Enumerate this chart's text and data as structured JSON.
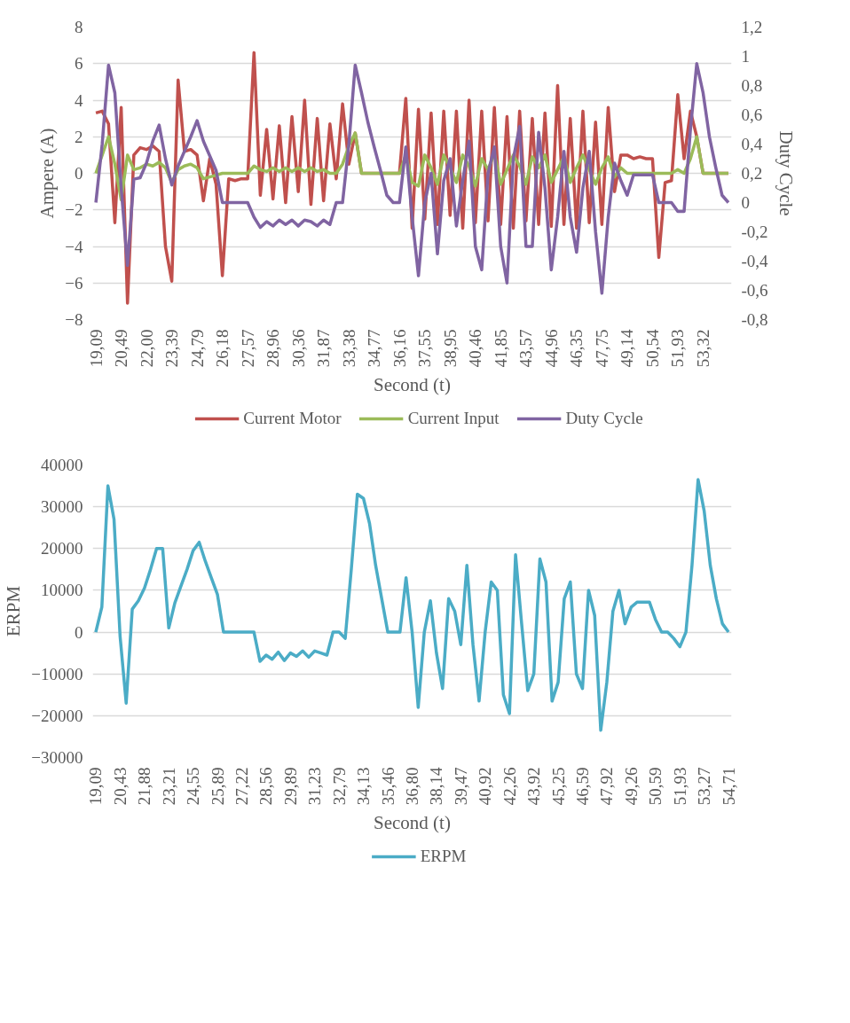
{
  "chart_data": [
    {
      "type": "line",
      "xlabel": "Second (t)",
      "ylabel": "Ampere (A)",
      "y2label": "Duty Cycle",
      "grid": "y",
      "legend": "bottom",
      "categories": [
        "19,09",
        null,
        null,
        null,
        "20,49",
        null,
        null,
        null,
        "22,00",
        null,
        null,
        null,
        "23,39",
        null,
        null,
        null,
        "24,79",
        null,
        null,
        null,
        "26,18",
        null,
        null,
        null,
        "27,57",
        null,
        null,
        null,
        "28,96",
        null,
        null,
        null,
        "30,36",
        null,
        null,
        null,
        "31,87",
        null,
        null,
        null,
        "33,38",
        null,
        null,
        null,
        "34,77",
        null,
        null,
        null,
        "36,16",
        null,
        null,
        null,
        "37,55",
        null,
        null,
        null,
        "38,95",
        null,
        null,
        null,
        "40,46",
        null,
        null,
        null,
        "41,85",
        null,
        null,
        null,
        "43,57",
        null,
        null,
        null,
        "44,96",
        null,
        null,
        null,
        "46,35",
        null,
        null,
        null,
        "47,75",
        null,
        null,
        null,
        "49,14",
        null,
        null,
        null,
        "50,54",
        null,
        null,
        null,
        "51,93",
        null,
        null,
        null,
        "53,32",
        null,
        null,
        null,
        null
      ],
      "ylim": [
        -8,
        8
      ],
      "yticks": [
        -8,
        -6,
        -4,
        -2,
        0,
        2,
        4,
        6,
        8
      ],
      "y2lim": [
        -0.8,
        1.2
      ],
      "y2ticks": [
        {
          "value": -0.8,
          "label": "-0,8"
        },
        {
          "value": -0.6,
          "label": "-0,6"
        },
        {
          "value": -0.4,
          "label": "-0,4"
        },
        {
          "value": -0.2,
          "label": "-0,2"
        },
        0,
        {
          "value": 0.2,
          "label": "0,2"
        },
        {
          "value": 0.4,
          "label": "0,4"
        },
        {
          "value": 0.6,
          "label": "0,6"
        },
        {
          "value": 0.8,
          "label": "0,8"
        },
        1,
        {
          "value": 1.2,
          "label": "1,2"
        }
      ],
      "series": [
        {
          "name": "Current Motor",
          "color": "#c0504d",
          "values": [
            3.3,
            3.4,
            2.7,
            -2.7,
            3.6,
            -7.1,
            1.0,
            1.4,
            1.3,
            1.5,
            1.2,
            -4.0,
            -5.9,
            5.1,
            1.2,
            1.3,
            1.0,
            -1.5,
            0.8,
            -0.6,
            -5.6,
            -0.3,
            -0.4,
            -0.3,
            -0.3,
            6.6,
            -1.2,
            2.4,
            -1.4,
            2.6,
            -1.6,
            3.1,
            -1.0,
            4.0,
            -1.7,
            3.0,
            -1.5,
            2.7,
            -0.3,
            3.8,
            0.5,
            2.2,
            0,
            0,
            0,
            0,
            0,
            0,
            0,
            4.1,
            -3.0,
            3.5,
            -2.5,
            3.3,
            -2.8,
            3.4,
            -2.3,
            3.4,
            -3.0,
            4.0,
            -2.7,
            3.4,
            -2.6,
            3.6,
            -2.8,
            3.1,
            -3.0,
            3.4,
            -2.6,
            3.0,
            -2.8,
            3.3,
            -2.9,
            4.8,
            -2.8,
            3.0,
            -3.0,
            3.4,
            -2.7,
            2.8,
            -2.8,
            3.6,
            -1.0,
            1.0,
            1.0,
            0.8,
            0.9,
            0.8,
            0.8,
            -4.6,
            -0.5,
            -0.4,
            4.3,
            0.8,
            3.4,
            2.0,
            0,
            0,
            0,
            0,
            0
          ]
        },
        {
          "name": "Current Input",
          "color": "#9bbb59",
          "values": [
            0,
            1.0,
            2.0,
            0.5,
            -1.45,
            1.0,
            0.2,
            0.3,
            0.5,
            0.4,
            0.6,
            0.3,
            -0.5,
            0.2,
            0.4,
            0.5,
            0.3,
            -0.3,
            -0.2,
            -0.1,
            0,
            0,
            0,
            0,
            0,
            0.4,
            0.2,
            0.1,
            0.3,
            0.1,
            0.3,
            0.1,
            0.3,
            0.1,
            0.3,
            0.1,
            0.2,
            0,
            0,
            0.5,
            1.5,
            2.2,
            0,
            0,
            0,
            0,
            0,
            0,
            0,
            1.0,
            -0.5,
            -0.7,
            1.0,
            0.3,
            -0.6,
            1.0,
            0.3,
            -0.5,
            1.0,
            0.4,
            -0.7,
            0.8,
            0.2,
            1.1,
            -0.6,
            0.2,
            1.0,
            0.4,
            -0.6,
            0.9,
            0.3,
            1.0,
            -0.5,
            0.2,
            0.9,
            -0.5,
            0.3,
            1.0,
            0.2,
            -0.6,
            0.3,
            0.9,
            -0.2,
            0.3,
            0,
            0,
            0,
            0,
            0,
            0,
            0,
            0,
            0.2,
            0,
            0.8,
            2.0,
            0,
            0,
            0,
            0,
            0
          ]
        },
        {
          "name": "Duty Cycle",
          "color": "#8064a2",
          "axis": "y2",
          "values": [
            0,
            0.4,
            0.94,
            0.75,
            0.1,
            -0.43,
            0.16,
            0.17,
            0.27,
            0.42,
            0.53,
            0.3,
            0.12,
            0.25,
            0.35,
            0.45,
            0.56,
            0.42,
            0.32,
            0.22,
            0,
            0,
            0,
            0,
            0,
            -0.1,
            -0.17,
            -0.13,
            -0.16,
            -0.12,
            -0.15,
            -0.12,
            -0.16,
            -0.12,
            -0.13,
            -0.16,
            -0.12,
            -0.15,
            0,
            0,
            0.4,
            0.94,
            0.75,
            0.55,
            0.38,
            0.22,
            0.05,
            0,
            0,
            0.38,
            -0.1,
            -0.5,
            0,
            0.2,
            -0.35,
            0.15,
            0.3,
            -0.16,
            0.15,
            0.42,
            -0.3,
            -0.46,
            0.2,
            0.38,
            -0.3,
            -0.55,
            0.3,
            0.52,
            -0.3,
            -0.3,
            0.48,
            0.1,
            -0.46,
            -0.1,
            0.35,
            -0.1,
            -0.34,
            0.1,
            0.35,
            -0.2,
            -0.62,
            -0.1,
            0.27,
            0.15,
            0.05,
            0.19,
            0.19,
            0.19,
            0.19,
            0,
            0,
            0,
            -0.06,
            -0.06,
            0.5,
            0.95,
            0.75,
            0.45,
            0.24,
            0.05,
            0
          ]
        }
      ]
    },
    {
      "type": "line",
      "xlabel": "Second (t)",
      "ylabel": "ERPM",
      "grid": "y",
      "legend": "bottom",
      "categories": [
        "19,09",
        null,
        null,
        null,
        "20,43",
        null,
        null,
        null,
        "21,88",
        null,
        null,
        null,
        "23,21",
        null,
        null,
        null,
        "24,55",
        null,
        null,
        null,
        "25,89",
        null,
        null,
        null,
        "27,22",
        null,
        null,
        null,
        "28,56",
        null,
        null,
        null,
        "29,89",
        null,
        null,
        null,
        "31,23",
        null,
        null,
        null,
        "32,79",
        null,
        null,
        null,
        "34,13",
        null,
        null,
        null,
        "35,46",
        null,
        null,
        null,
        "36,80",
        null,
        null,
        null,
        "38,14",
        null,
        null,
        null,
        "39,47",
        null,
        null,
        null,
        "40,92",
        null,
        null,
        null,
        "42,26",
        null,
        null,
        null,
        "43,92",
        null,
        null,
        null,
        "45,25",
        null,
        null,
        null,
        "46,59",
        null,
        null,
        null,
        "47,92",
        null,
        null,
        null,
        "49,26",
        null,
        null,
        null,
        "50,59",
        null,
        null,
        null,
        "51,93",
        null,
        null,
        null,
        "53,27",
        null,
        null,
        null,
        "54,71"
      ],
      "ylim": [
        -30000,
        40000
      ],
      "yticks": [
        -30000,
        -20000,
        -10000,
        0,
        10000,
        20000,
        30000,
        40000
      ],
      "series": [
        {
          "name": "ERPM",
          "color": "#4bacc6",
          "values": [
            0,
            6000,
            35000,
            27000,
            -1000,
            -17000,
            5500,
            7500,
            10500,
            15000,
            20000,
            20000,
            1000,
            7000,
            11000,
            15000,
            19500,
            21500,
            17000,
            13000,
            9000,
            0,
            0,
            0,
            0,
            0,
            0,
            -7000,
            -5500,
            -6500,
            -4800,
            -6800,
            -5000,
            -5800,
            -4500,
            -6000,
            -4500,
            -5000,
            -5500,
            0,
            0,
            -1500,
            15000,
            33000,
            32000,
            26000,
            16000,
            8000,
            0,
            0,
            0,
            13000,
            0,
            -18000,
            0,
            7500,
            -5000,
            -13500,
            8000,
            5000,
            -3000,
            16000,
            -3000,
            -16500,
            0,
            12000,
            10000,
            -15000,
            -19500,
            18500,
            2000,
            -14000,
            -10000,
            17500,
            12000,
            -16500,
            -12000,
            8000,
            12000,
            -10000,
            -13500,
            10000,
            4000,
            -23500,
            -12000,
            5000,
            10000,
            2000,
            6000,
            7200,
            7200,
            7200,
            3000,
            0,
            0,
            -1500,
            -3500,
            0,
            16000,
            36500,
            29000,
            16000,
            8000,
            2000,
            0
          ]
        }
      ]
    }
  ]
}
